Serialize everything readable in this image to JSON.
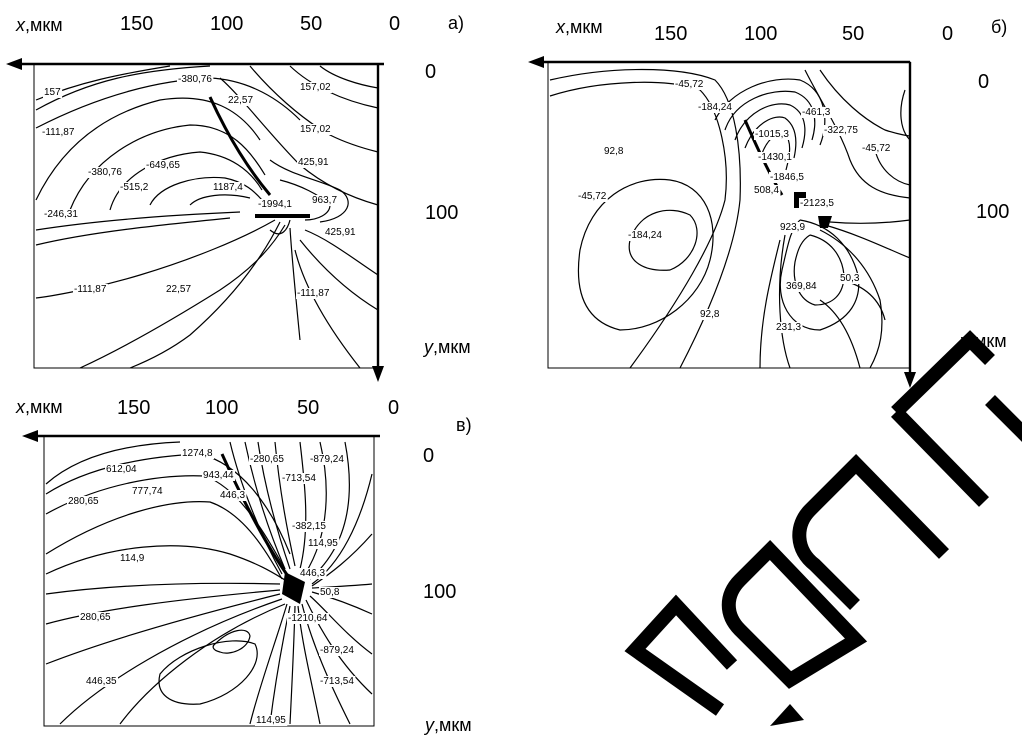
{
  "axes": {
    "x_title": "x",
    "y_title": "y",
    "unit": ",мкм",
    "x_ticks": [
      "150",
      "100",
      "50",
      "0"
    ],
    "y_ticks": [
      "0",
      "100"
    ]
  },
  "panels": [
    {
      "caption": "а)",
      "labels": [
        "157",
        "-380,76",
        "157,02",
        "22,57",
        "-111,87",
        "157,02",
        "-380,76",
        "-649,65",
        "425,91",
        "-515,2",
        "1187,4",
        "-246,31",
        "-1994,1",
        "963,7",
        "425,91",
        "-111,87",
        "22,57",
        "-111,87"
      ]
    },
    {
      "caption": "б)",
      "labels": [
        "-45,72",
        "-184,24",
        "-461,3",
        "-322,75",
        "-1015,3",
        "92,8",
        "-1430,1",
        "-45,72",
        "-1846,5",
        "-45,72",
        "508,4",
        "-2123,5",
        "923,9",
        "-184,24",
        "50,3",
        "369,84",
        "92,8",
        "231,3"
      ]
    },
    {
      "caption": "в)",
      "labels": [
        "1274,8",
        "-280,65",
        "-879,24",
        "612,04",
        "943,44",
        "-713,54",
        "777,74",
        "280,65",
        "446,3",
        "-382,15",
        "114,9",
        "114,95",
        "446,3",
        "50,8",
        "280,65",
        "-1210,64",
        "-879,24",
        "446,35",
        "-713,54",
        "114,95"
      ]
    }
  ]
}
